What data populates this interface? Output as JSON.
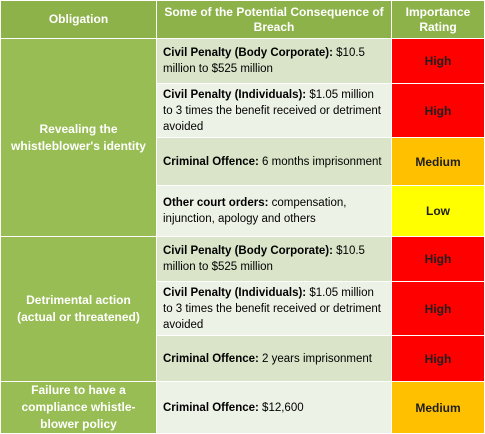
{
  "headers": {
    "obligation": "Obligation",
    "consequence": "Some of the Potential Consequence of Breach",
    "rating": "Importance Rating"
  },
  "groups": [
    {
      "obligation": "Revealing the whistleblower's identity",
      "rows": [
        {
          "label": "Civil Penalty (Body Corporate):",
          "text": " $10.5 million to $525 million",
          "rating": "High",
          "level": "high"
        },
        {
          "label": "Civil Penalty (Individuals):",
          "text": " $1.05 million to 3 times the benefit received or detriment avoided",
          "rating": "High",
          "level": "high"
        },
        {
          "label": "Criminal Offence:",
          "text": " 6 months imprisonment",
          "rating": "Medium",
          "level": "medium"
        },
        {
          "label": "Other court orders:",
          "text": " compensation, injunction, apology and others",
          "rating": "Low",
          "level": "low"
        }
      ]
    },
    {
      "obligation": "Detrimental action (actual or threatened)",
      "rows": [
        {
          "label": "Civil Penalty (Body Corporate):",
          "text": " $10.5 million to $525 million",
          "rating": "High",
          "level": "high"
        },
        {
          "label": "Civil Penalty (Individuals):",
          "text": " $1.05 million to 3 times the benefit received or detriment avoided",
          "rating": "High",
          "level": "high"
        },
        {
          "label": "Criminal Offence:",
          "text": " 2 years imprisonment",
          "rating": "High",
          "level": "high"
        }
      ]
    },
    {
      "obligation": "Failure to have a compliance whistle-blower policy",
      "rows": [
        {
          "label": "Criminal Offence:",
          "text": " $12,600",
          "rating": "Medium",
          "level": "medium"
        }
      ]
    }
  ],
  "colors": {
    "header_bg": "#8eb24a",
    "obligation_bg": "#98bd54",
    "row_alt_1": "#d9e4c8",
    "row_alt_2": "#edf2e6",
    "high": "#ff0000",
    "medium": "#ffc000",
    "low": "#ffff00"
  }
}
